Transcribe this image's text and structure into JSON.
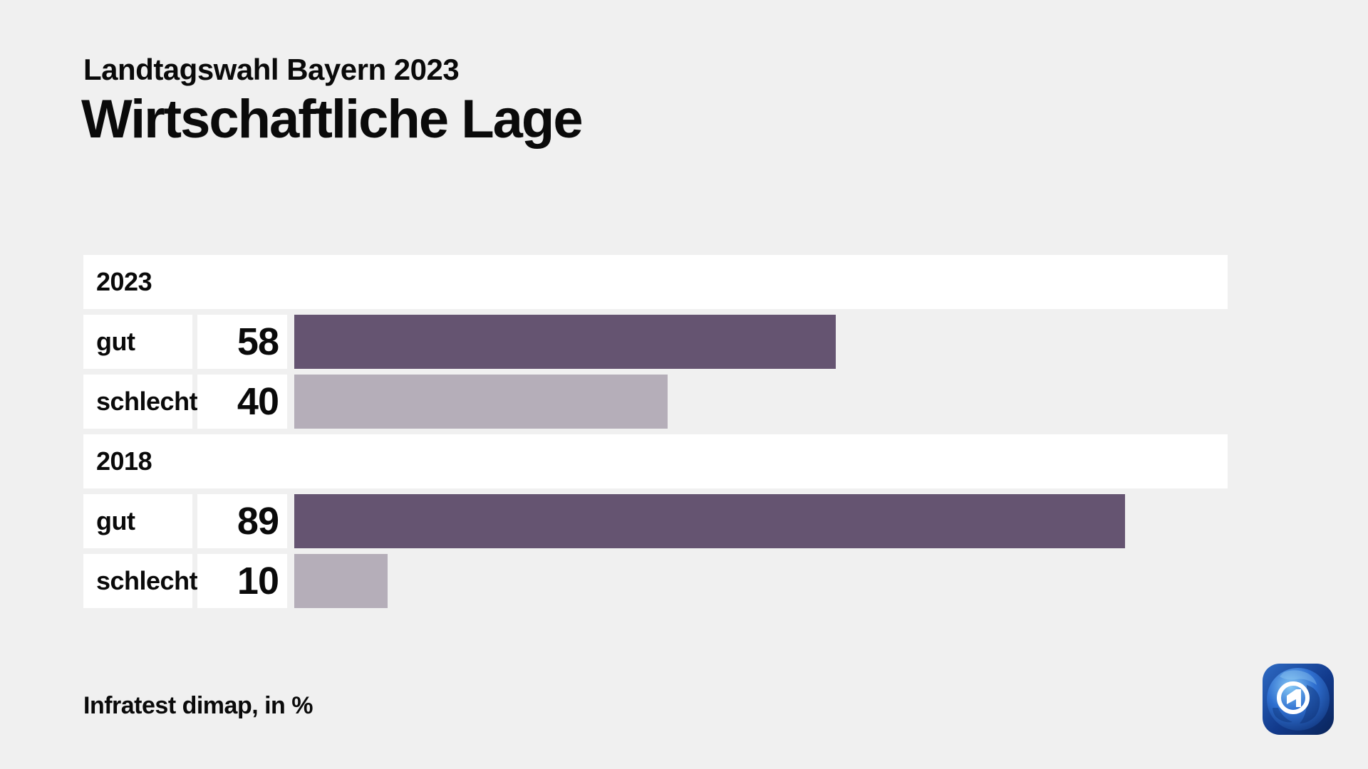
{
  "page": {
    "background_color": "#f0f0f0",
    "band_color": "#ffffff",
    "text_color": "#0a0a0a"
  },
  "header": {
    "kicker": "Landtagswahl Bayern 2023",
    "title": "Wirtschaftliche Lage"
  },
  "footer": {
    "source_note": "Infratest dimap, in %"
  },
  "logo": {
    "name": "ARD tagesschau globe logo",
    "square_color_top": "#2e6bc4",
    "square_color_bottom": "#0a2458",
    "globe_highlight": "#85c8f5",
    "globe_mid": "#2f6fd0",
    "globe_dark": "#0d2f74",
    "mark_color": "#ffffff"
  },
  "chart_data": {
    "type": "bar",
    "orientation": "horizontal",
    "title": "Wirtschaftliche Lage",
    "subtitle": "Landtagswahl Bayern 2023",
    "unit": "%",
    "source": "Infratest dimap",
    "xlim": [
      0,
      100
    ],
    "grid": false,
    "legend": "none",
    "colors": {
      "gut": "#655471",
      "schlecht": "#b5aeb9"
    },
    "groups": [
      {
        "label": "2023",
        "rows": [
          {
            "label": "gut",
            "value": 58,
            "color": "#655471"
          },
          {
            "label": "schlecht",
            "value": 40,
            "color": "#b5aeb9"
          }
        ]
      },
      {
        "label": "2018",
        "rows": [
          {
            "label": "gut",
            "value": 89,
            "color": "#655471"
          },
          {
            "label": "schlecht",
            "value": 10,
            "color": "#b5aeb9"
          }
        ]
      }
    ]
  }
}
